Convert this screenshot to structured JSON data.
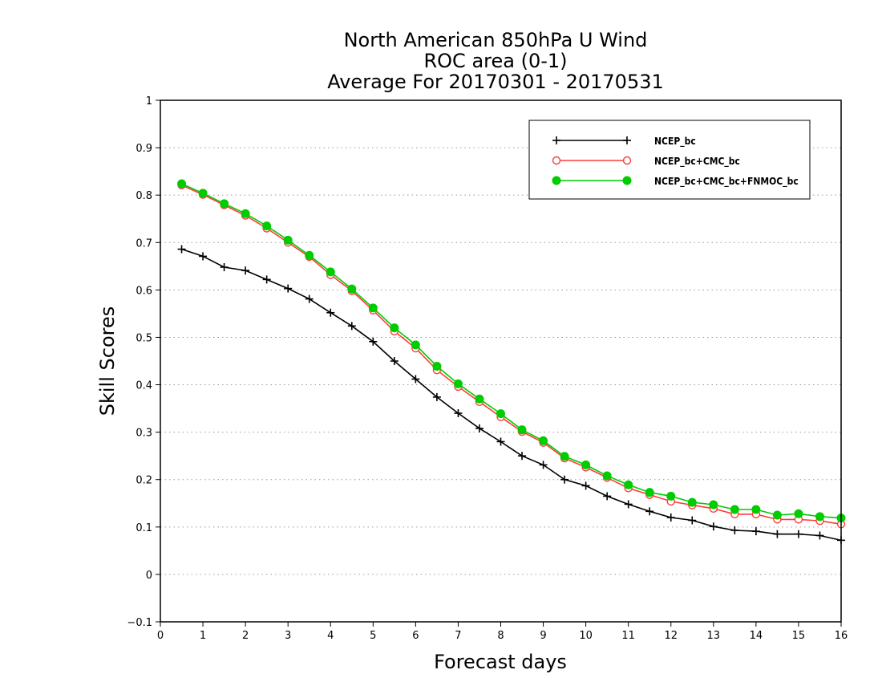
{
  "chart_data": {
    "type": "line",
    "title": [
      "North American 850hPa U Wind",
      "ROC area (0-1)",
      "Average For 20170301 - 20170531"
    ],
    "xlabel": "Forecast days",
    "ylabel": "Skill Scores",
    "xlim": [
      0,
      16
    ],
    "ylim": [
      -0.1,
      1
    ],
    "xticks": [
      "0",
      "1",
      "2",
      "3",
      "4",
      "5",
      "6",
      "7",
      "8",
      "9",
      "10",
      "11",
      "12",
      "13",
      "14",
      "15",
      "16"
    ],
    "yticks": [
      "−0.1",
      "0",
      "0.1",
      "0.2",
      "0.3",
      "0.4",
      "0.5",
      "0.6",
      "0.7",
      "0.8",
      "0.9",
      "1"
    ],
    "grid": true,
    "legend_position": "top-right",
    "x": [
      0.5,
      1,
      1.5,
      2,
      2.5,
      3,
      3.5,
      4,
      4.5,
      5,
      5.5,
      6,
      6.5,
      7,
      7.5,
      8,
      8.5,
      9,
      9.5,
      10,
      10.5,
      11,
      11.5,
      12,
      12.5,
      13,
      13.5,
      14,
      14.5,
      15,
      15.5,
      16
    ],
    "series": [
      {
        "name": "NCEP_bc",
        "color": "#000000",
        "marker": "plus",
        "values": [
          0.686,
          0.671,
          0.648,
          0.641,
          0.622,
          0.603,
          0.581,
          0.552,
          0.524,
          0.491,
          0.45,
          0.412,
          0.374,
          0.34,
          0.308,
          0.28,
          0.25,
          0.231,
          0.2,
          0.187,
          0.165,
          0.148,
          0.133,
          0.12,
          0.114,
          0.101,
          0.093,
          0.091,
          0.085,
          0.085,
          0.082,
          0.072
        ]
      },
      {
        "name": "NCEP_bc+CMC_bc",
        "color": "#ff3b3b",
        "marker": "open-circle",
        "values": [
          0.821,
          0.801,
          0.779,
          0.757,
          0.73,
          0.7,
          0.67,
          0.632,
          0.598,
          0.557,
          0.513,
          0.477,
          0.431,
          0.396,
          0.364,
          0.332,
          0.301,
          0.278,
          0.245,
          0.226,
          0.204,
          0.182,
          0.168,
          0.154,
          0.146,
          0.139,
          0.127,
          0.127,
          0.116,
          0.116,
          0.113,
          0.106
        ]
      },
      {
        "name": "NCEP_bc+CMC_bc+FNMOC_bc",
        "color": "#00cc00",
        "marker": "filled-circle",
        "values": [
          0.824,
          0.804,
          0.782,
          0.761,
          0.735,
          0.705,
          0.673,
          0.638,
          0.602,
          0.562,
          0.52,
          0.484,
          0.439,
          0.402,
          0.37,
          0.339,
          0.305,
          0.282,
          0.249,
          0.231,
          0.208,
          0.189,
          0.173,
          0.165,
          0.152,
          0.147,
          0.137,
          0.137,
          0.125,
          0.128,
          0.122,
          0.119
        ]
      }
    ]
  }
}
